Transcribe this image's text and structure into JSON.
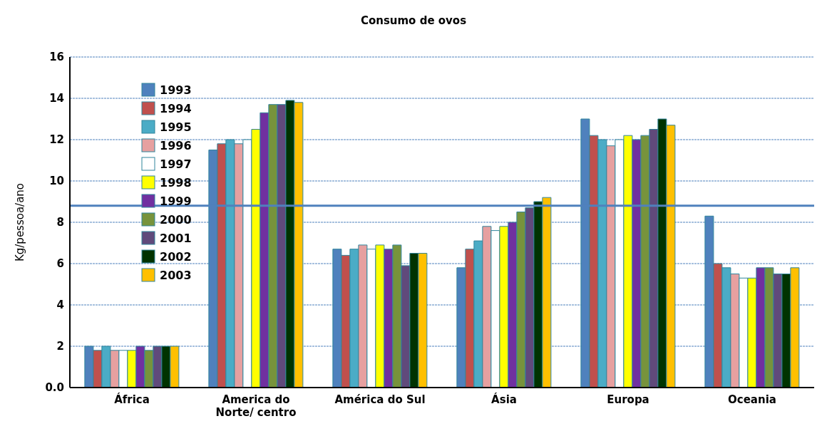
{
  "chart_data": {
    "type": "bar",
    "title": "Consumo de ovos",
    "ylabel": "Kg/pessoa/ano",
    "categories": [
      "África",
      "America do Norte/ centro",
      "América do Sul",
      "Ásia",
      "Europa",
      "Oceania"
    ],
    "series": [
      {
        "name": "1993",
        "color": "#4f81bd",
        "values": [
          2.0,
          11.5,
          6.7,
          5.8,
          13.0,
          8.3
        ]
      },
      {
        "name": "1994",
        "color": "#c0504d",
        "values": [
          1.8,
          11.8,
          6.4,
          6.7,
          12.2,
          6.0
        ]
      },
      {
        "name": "1995",
        "color": "#4bacc6",
        "values": [
          2.0,
          12.0,
          6.7,
          7.1,
          12.0,
          5.8
        ]
      },
      {
        "name": "1996",
        "color": "#e6a0a0",
        "values": [
          1.8,
          11.8,
          6.9,
          7.8,
          11.7,
          5.5
        ]
      },
      {
        "name": "1997",
        "color": "#ffffff",
        "values": [
          1.8,
          12.0,
          6.7,
          7.6,
          12.0,
          5.3
        ]
      },
      {
        "name": "1998",
        "color": "#ffff00",
        "values": [
          1.8,
          12.5,
          6.9,
          7.8,
          12.2,
          5.3
        ]
      },
      {
        "name": "1999",
        "color": "#7030a0",
        "values": [
          2.0,
          13.3,
          6.7,
          8.0,
          12.0,
          5.8
        ]
      },
      {
        "name": "2000",
        "color": "#77933c",
        "values": [
          1.8,
          13.7,
          6.9,
          8.5,
          12.2,
          5.8
        ]
      },
      {
        "name": "2001",
        "color": "#604a7b",
        "values": [
          2.0,
          13.7,
          5.9,
          8.7,
          12.5,
          5.5
        ]
      },
      {
        "name": "2002",
        "color": "#003300",
        "values": [
          2.0,
          13.9,
          6.5,
          9.0,
          13.0,
          5.5
        ]
      },
      {
        "name": "2003",
        "color": "#ffc000",
        "values": [
          2.0,
          13.8,
          6.5,
          9.2,
          12.7,
          5.8
        ]
      }
    ],
    "ylim": [
      0,
      16
    ],
    "yticks": [
      {
        "value": 0,
        "label": "0.0"
      },
      2,
      4,
      6,
      8,
      10,
      12,
      14,
      16
    ],
    "grid": "y",
    "legend": "top left",
    "ref_lines": [
      {
        "axis": "y",
        "value": 8.8,
        "color": "#4f81bd"
      }
    ]
  }
}
